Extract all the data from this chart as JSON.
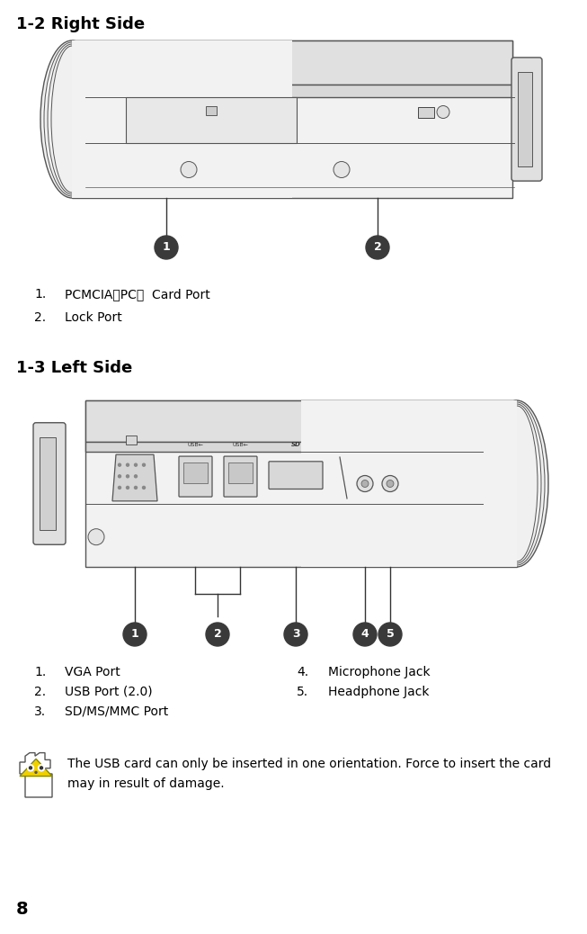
{
  "title1": "1-2 Right Side",
  "title2": "1-3 Left Side",
  "right_labels": [
    {
      "num": "1",
      "text": "PCMCIA（PC）  Card Port"
    },
    {
      "num": "2",
      "text": "Lock Port"
    }
  ],
  "left_labels_col1": [
    {
      "num": "1",
      "text": "VGA Port"
    },
    {
      "num": "2",
      "text": "USB Port (2.0)"
    },
    {
      "num": "3",
      "text": "SD/MS/MMC Port"
    }
  ],
  "left_labels_col2": [
    {
      "num": "4",
      "text": "Microphone Jack"
    },
    {
      "num": "5",
      "text": "Headphone Jack"
    }
  ],
  "warning_text1": "The USB card can only be inserted in one orientation. Force to insert the card",
  "warning_text2": "may in result of damage.",
  "page_num": "8",
  "bg_color": "#ffffff",
  "text_color": "#000000",
  "title_fontsize": 13,
  "body_fontsize": 10,
  "circle_color": "#3a3a3a",
  "circle_text_color": "#ffffff"
}
